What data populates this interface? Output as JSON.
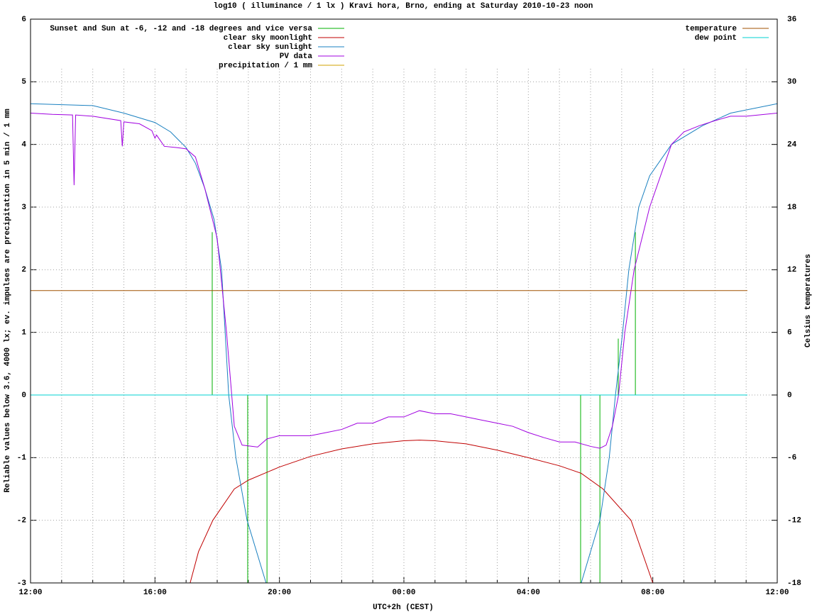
{
  "chart_data": {
    "type": "line",
    "title": "log10 ( illuminance / 1 lx ) Kravi hora, Brno, ending at Saturday 2010-10-23 noon",
    "xlabel": "UTC+2h (CEST)",
    "ylabel": "Reliable values below 3.6, 4000 lx; ev. impulses are precipitation in 5 min / 1 mm",
    "y2label": "Celsius temperatures",
    "xlim": [
      0,
      24
    ],
    "xticks": [
      {
        "value": 0,
        "label": "12:00"
      },
      {
        "value": 4,
        "label": "16:00"
      },
      {
        "value": 8,
        "label": "20:00"
      },
      {
        "value": 12,
        "label": "00:00"
      },
      {
        "value": 16,
        "label": "04:00"
      },
      {
        "value": 20,
        "label": "08:00"
      },
      {
        "value": 24,
        "label": "12:00"
      }
    ],
    "xminorticks": [
      1,
      2,
      3,
      5,
      6,
      7,
      9,
      10,
      11,
      13,
      14,
      15,
      17,
      18,
      19,
      21,
      22,
      23
    ],
    "ylim": [
      -3,
      6
    ],
    "yticks": [
      -3,
      -2,
      -1,
      0,
      1,
      2,
      3,
      4,
      5,
      6
    ],
    "y2lim": [
      -18,
      36
    ],
    "y2ticks": [
      -18,
      -12,
      -6,
      0,
      6,
      12,
      18,
      24,
      30,
      36
    ],
    "grid": true,
    "series": [
      {
        "name": "Sunset and Sun at -6, -12 and -18 degrees and vice versa",
        "kind": "impulse",
        "color": "#00b000",
        "legend": "top left",
        "x": [
          5.84,
          6.98,
          7.6,
          17.68,
          18.3,
          18.89,
          19.44
        ],
        "values": [
          2.6,
          -3,
          -3,
          -3,
          -3,
          0.9,
          2.6
        ]
      },
      {
        "name": "clear sky moonlight",
        "kind": "line",
        "color": "#c00000",
        "legend": "top left",
        "x": [
          5.13,
          5.4,
          5.86,
          6.55,
          7,
          8,
          9,
          10,
          11,
          12,
          12.5,
          13,
          14,
          15,
          16,
          17,
          17.7,
          18.4,
          19.3,
          20
        ],
        "values": [
          -3,
          -2.5,
          -2,
          -1.5,
          -1.36,
          -1.15,
          -0.98,
          -0.86,
          -0.78,
          -0.73,
          -0.72,
          -0.73,
          -0.78,
          -0.88,
          -1.0,
          -1.13,
          -1.25,
          -1.5,
          -2,
          -3
        ]
      },
      {
        "name": "clear sky sunlight",
        "kind": "line",
        "color": "#1a80c0",
        "legend": "top left",
        "x": [
          0,
          2,
          3,
          4,
          4.5,
          5,
          5.3,
          5.6,
          5.9,
          6.14,
          6.37,
          6.6,
          6.96,
          7.57,
          12,
          17.7,
          18.3,
          18.6,
          18.8,
          19.03,
          19.23,
          19.55,
          19.9,
          20.6,
          21.6,
          22.5,
          24
        ],
        "values": [
          4.65,
          4.62,
          4.5,
          4.35,
          4.2,
          3.95,
          3.7,
          3.3,
          2.8,
          2,
          0,
          -1,
          -2,
          -3,
          null,
          -3,
          -2,
          -1,
          0,
          1,
          2,
          3,
          3.5,
          4,
          4.3,
          4.5,
          4.65
        ]
      },
      {
        "name": "PV data",
        "kind": "line",
        "color": "#a000e0",
        "legend": "top left",
        "x": [
          0,
          0.7,
          1.35,
          1.4,
          1.45,
          2,
          2.9,
          2.95,
          3.0,
          3.5,
          3.9,
          4.0,
          4.05,
          4.3,
          4.7,
          5,
          5.3,
          5.6,
          6.0,
          6.3,
          6.55,
          6.8,
          7.3,
          7.6,
          8,
          8.5,
          9,
          9.5,
          10,
          10.5,
          11,
          11.5,
          12,
          12.5,
          13,
          13.5,
          14,
          14.5,
          15,
          15.5,
          16,
          16.5,
          17,
          17.5,
          18,
          18.3,
          18.5,
          18.7,
          18.9,
          19.1,
          19.4,
          19.9,
          20.6,
          21,
          21.5,
          22,
          22.5,
          23,
          24
        ],
        "values": [
          4.5,
          4.48,
          4.47,
          3.35,
          4.47,
          4.45,
          4.38,
          3.97,
          4.36,
          4.33,
          4.22,
          4.1,
          4.15,
          3.97,
          3.95,
          3.93,
          3.8,
          3.3,
          2.5,
          1.0,
          -0.5,
          -0.8,
          -0.83,
          -0.7,
          -0.65,
          -0.65,
          -0.65,
          -0.6,
          -0.55,
          -0.45,
          -0.45,
          -0.35,
          -0.35,
          -0.25,
          -0.3,
          -0.3,
          -0.35,
          -0.4,
          -0.45,
          -0.5,
          -0.6,
          -0.68,
          -0.75,
          -0.75,
          -0.82,
          -0.85,
          -0.8,
          -0.5,
          0,
          1,
          2,
          3,
          4,
          4.2,
          4.3,
          4.38,
          4.45,
          4.45,
          4.5
        ]
      },
      {
        "name": "precipitation / 1 mm",
        "kind": "impulse",
        "color": "#d0a000",
        "legend": "top left",
        "x": [],
        "values": []
      },
      {
        "name": "temperature",
        "kind": "line",
        "axis": "y2",
        "color": "#a05000",
        "legend": "top right",
        "x": [
          0,
          23.04
        ],
        "values": [
          10,
          10
        ]
      },
      {
        "name": "dew point",
        "kind": "line",
        "axis": "y2",
        "color": "#00d0d0",
        "legend": "top right",
        "x": [
          0,
          23.04
        ],
        "values": [
          0,
          0
        ]
      }
    ]
  }
}
